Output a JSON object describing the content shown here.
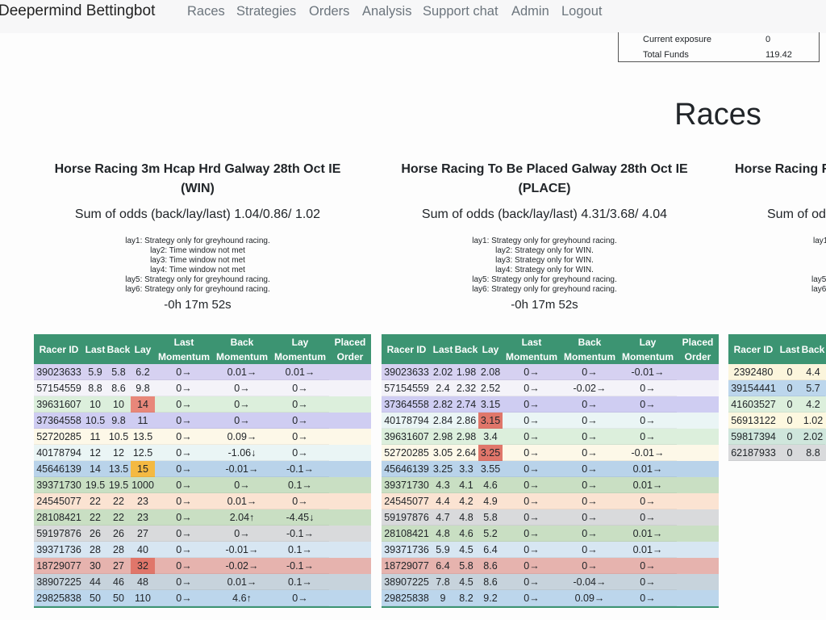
{
  "nav": {
    "brand": "Deepermind Bettingbot",
    "links": [
      "Races",
      "Strategies",
      "Orders",
      "Analysis",
      "Support chat",
      "Admin",
      "Logout"
    ]
  },
  "funds": {
    "rows": [
      [
        "Current exposure",
        "0"
      ],
      [
        "Total Funds",
        "119.42"
      ]
    ]
  },
  "heading": "Races",
  "races": [
    {
      "title": "Horse Racing 3m Hcap Hrd Galway 28th Oct IE (WIN)",
      "odds": "Sum of odds (back/lay/last) 1.04/0.86/ 1.02",
      "notes": [
        "lay1: Strategy only for greyhound racing.",
        "lay2: Time window not met",
        "lay3: Time window not met",
        "lay4: Time window not met",
        "lay5: Strategy only for greyhound racing.",
        "lay6: Strategy only for greyhound racing."
      ],
      "timer": "-0h 17m 52s",
      "headers": [
        "Racer ID",
        "Last",
        "Back",
        "Lay",
        "Last Momentum",
        "Back Momentum",
        "Lay Momentum",
        "Placed Order"
      ],
      "rows": [
        {
          "cells": [
            "39023633",
            5.9,
            5.8,
            6.2,
            "0→",
            "0.01→",
            "0.01→"
          ],
          "color": "#d6d1f1"
        },
        {
          "cells": [
            "57154559",
            8.8,
            8.6,
            9.8,
            "0→",
            "0→",
            "0→"
          ],
          "color": "#f4f3f9"
        },
        {
          "cells": [
            "39631607",
            10,
            10,
            14,
            "0→",
            "0→",
            "0→"
          ],
          "color": "#dcefdc",
          "lay_color": "#e8877a"
        },
        {
          "cells": [
            "37364558",
            10.5,
            9.8,
            11,
            "0→",
            "0→",
            "0→"
          ],
          "color": "#cfcdf2"
        },
        {
          "cells": [
            "52720285",
            11,
            10.5,
            13.5,
            "0→",
            "0.09→",
            "0→"
          ],
          "color": "#fdf8e8"
        },
        {
          "cells": [
            "40178794",
            12,
            12,
            12.5,
            "0→",
            "-1.06↓",
            "0→"
          ],
          "color": "#eaf5f5"
        },
        {
          "cells": [
            "45646139",
            14,
            13.5,
            15,
            "0→",
            "-0.01→",
            "-0.1→"
          ],
          "color": "#b9d3ea",
          "lay_color": "#f4b942"
        },
        {
          "cells": [
            "39371730",
            19.5,
            19.5,
            1000,
            "0→",
            "0→",
            "0.1→"
          ],
          "color": "#c9dfc3"
        },
        {
          "cells": [
            "24545077",
            22,
            22,
            23,
            "0→",
            "0.01→",
            "0→"
          ],
          "color": "#fbe3d2"
        },
        {
          "cells": [
            "28108421",
            22,
            22,
            23,
            "0→",
            "2.04↑",
            "-4.45↓"
          ],
          "color": "#c9dfc3"
        },
        {
          "cells": [
            "59197876",
            26,
            26,
            27,
            "0→",
            "0→",
            "-0.1→"
          ],
          "color": "#d9dadc"
        },
        {
          "cells": [
            "39371736",
            28,
            28,
            40,
            "0→",
            "-0.01→",
            "0.1→"
          ],
          "color": "#d7e6f2"
        },
        {
          "cells": [
            "18729077",
            30,
            27,
            32,
            "0→",
            "-0.02→",
            "-0.1→"
          ],
          "color": "#e6b3ae",
          "lay_color": "#e0766a"
        },
        {
          "cells": [
            "38907225",
            44,
            46,
            48,
            "0→",
            "0.01→",
            "0.1→"
          ],
          "color": "#c7d3dc"
        },
        {
          "cells": [
            "29825838",
            50,
            50,
            110,
            "0→",
            "4.6↑",
            "0→"
          ],
          "color": "#bcd6ec"
        }
      ]
    },
    {
      "title": "Horse Racing To Be Placed Galway 28th Oct IE (PLACE)",
      "odds": "Sum of odds (back/lay/last) 4.31/3.68/ 4.04",
      "notes": [
        "lay1: Strategy only for greyhound racing.",
        "lay2: Strategy only for WIN.",
        "lay3: Strategy only for WIN.",
        "lay4: Strategy only for WIN.",
        "lay5: Strategy only for greyhound racing.",
        "lay6: Strategy only for greyhound racing."
      ],
      "timer": "-0h 17m 52s",
      "headers": [
        "Racer ID",
        "Last",
        "Back",
        "Lay",
        "Last Momentum",
        "Back Momentum",
        "Lay Momentum",
        "Placed Order"
      ],
      "rows": [
        {
          "cells": [
            "39023633",
            2.02,
            1.98,
            2.08,
            "0→",
            "0→",
            "-0.01→"
          ],
          "color": "#d6d1f1"
        },
        {
          "cells": [
            "57154559",
            2.4,
            2.32,
            2.52,
            "0→",
            "-0.02→",
            "0→"
          ],
          "color": "#f4f3f9"
        },
        {
          "cells": [
            "37364558",
            2.82,
            2.74,
            3.15,
            "0→",
            "0→",
            "0→"
          ],
          "color": "#cfcdf2"
        },
        {
          "cells": [
            "40178794",
            2.84,
            2.86,
            3.15,
            "0→",
            "0→",
            "0→"
          ],
          "color": "#eaf5f5",
          "lay_color": "#e0766a"
        },
        {
          "cells": [
            "39631607",
            2.98,
            2.98,
            3.4,
            "0→",
            "0→",
            "0→"
          ],
          "color": "#dcefdc"
        },
        {
          "cells": [
            "52720285",
            3.05,
            2.64,
            3.25,
            "0→",
            "0→",
            "-0.01→"
          ],
          "color": "#fdf8e8",
          "lay_color": "#e0766a"
        },
        {
          "cells": [
            "45646139",
            3.25,
            3.3,
            3.55,
            "0→",
            "0→",
            "0.01→"
          ],
          "color": "#b9d3ea"
        },
        {
          "cells": [
            "39371730",
            4.3,
            4.1,
            4.6,
            "0→",
            "0→",
            "0.01→"
          ],
          "color": "#c9dfc3"
        },
        {
          "cells": [
            "24545077",
            4.4,
            4.2,
            4.9,
            "0→",
            "0→",
            "0→"
          ],
          "color": "#fbe3d2"
        },
        {
          "cells": [
            "59197876",
            4.7,
            4.8,
            5.8,
            "0→",
            "0→",
            "0→"
          ],
          "color": "#d9dadc"
        },
        {
          "cells": [
            "28108421",
            4.8,
            4.6,
            5.2,
            "0→",
            "0→",
            "0.01→"
          ],
          "color": "#c9dfc3"
        },
        {
          "cells": [
            "39371736",
            5.9,
            4.5,
            6.4,
            "0→",
            "0→",
            "0.01→"
          ],
          "color": "#d7e6f2"
        },
        {
          "cells": [
            "18729077",
            6.4,
            5.8,
            8.6,
            "0→",
            "0→",
            "0→"
          ],
          "color": "#e6b3ae"
        },
        {
          "cells": [
            "38907225",
            7.8,
            4.5,
            8.6,
            "0→",
            "-0.04→",
            "0→"
          ],
          "color": "#c7d3dc"
        },
        {
          "cells": [
            "29825838",
            9,
            8.2,
            9.2,
            "0→",
            "0.09→",
            "0→"
          ],
          "color": "#bcd6ec"
        }
      ]
    },
    {
      "title": "Horse Racing R",
      "odds": "Sum of odd",
      "notes": [
        "lay1",
        "lay5",
        "lay6"
      ],
      "headers": [
        "Racer ID",
        "Last",
        "Back"
      ],
      "rows": [
        {
          "cells": [
            "2392480",
            0,
            4.4
          ],
          "color": "#fbf5dc"
        },
        {
          "cells": [
            "39154441",
            0,
            5.7
          ],
          "color": "#bcd6ec"
        },
        {
          "cells": [
            "41603527",
            0,
            4.2
          ],
          "color": "#dcefdc"
        },
        {
          "cells": [
            "56913122",
            0,
            1.02
          ],
          "color": "#fdf8e0"
        },
        {
          "cells": [
            "59817394",
            0,
            2.02
          ],
          "color": "#cfe6dc"
        },
        {
          "cells": [
            "62187933",
            0,
            8.8
          ],
          "color": "#d9dadc"
        }
      ]
    }
  ]
}
